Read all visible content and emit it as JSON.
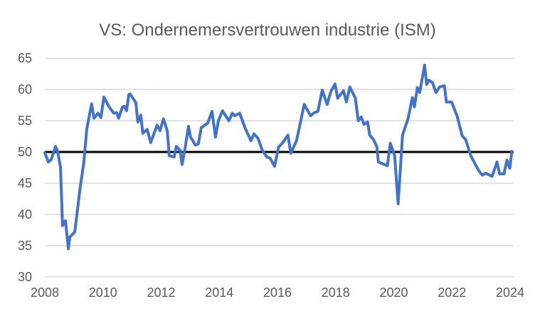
{
  "chart_data": {
    "type": "line",
    "title": "VS: Ondernemersvertrouwen industrie (ISM)",
    "xlabel": "",
    "ylabel": "",
    "xlim": [
      2008,
      2024
    ],
    "ylim": [
      30,
      65
    ],
    "x_ticks": [
      "2008",
      "2010",
      "2012",
      "2014",
      "2016",
      "2018",
      "2020",
      "2022",
      "2024"
    ],
    "y_ticks": [
      "30",
      "35",
      "40",
      "45",
      "50",
      "55",
      "60",
      "65"
    ],
    "grid": true,
    "legend": "none",
    "reference_line": {
      "y": 50,
      "color": "#000000"
    },
    "series": [
      {
        "name": "ISM",
        "color": "#4472c4",
        "points": [
          [
            2008.0,
            49.9
          ],
          [
            2008.12,
            48.4
          ],
          [
            2008.22,
            48.8
          ],
          [
            2008.37,
            50.9
          ],
          [
            2008.44,
            50.1
          ],
          [
            2008.54,
            47.5
          ],
          [
            2008.61,
            38.2
          ],
          [
            2008.71,
            39.0
          ],
          [
            2008.81,
            34.5
          ],
          [
            2008.86,
            36.4
          ],
          [
            2009.03,
            37.2
          ],
          [
            2009.22,
            44.5
          ],
          [
            2009.34,
            48.3
          ],
          [
            2009.44,
            53.6
          ],
          [
            2009.61,
            57.7
          ],
          [
            2009.69,
            55.4
          ],
          [
            2009.83,
            56.2
          ],
          [
            2009.93,
            55.5
          ],
          [
            2010.03,
            58.8
          ],
          [
            2010.2,
            57.3
          ],
          [
            2010.37,
            56.2
          ],
          [
            2010.47,
            56.3
          ],
          [
            2010.54,
            55.4
          ],
          [
            2010.67,
            57.2
          ],
          [
            2010.74,
            57.3
          ],
          [
            2010.81,
            56.6
          ],
          [
            2010.89,
            59.2
          ],
          [
            2010.93,
            59.3
          ],
          [
            2011.13,
            57.9
          ],
          [
            2011.2,
            54.8
          ],
          [
            2011.3,
            55.9
          ],
          [
            2011.37,
            53.0
          ],
          [
            2011.52,
            53.6
          ],
          [
            2011.64,
            51.5
          ],
          [
            2011.86,
            54.3
          ],
          [
            2011.96,
            53.4
          ],
          [
            2012.08,
            55.3
          ],
          [
            2012.21,
            53.4
          ],
          [
            2012.28,
            49.4
          ],
          [
            2012.45,
            49.2
          ],
          [
            2012.52,
            50.9
          ],
          [
            2012.65,
            50.3
          ],
          [
            2012.72,
            48.0
          ],
          [
            2012.82,
            50.5
          ],
          [
            2012.94,
            54.1
          ],
          [
            2013.01,
            52.4
          ],
          [
            2013.18,
            51.1
          ],
          [
            2013.28,
            51.3
          ],
          [
            2013.38,
            53.9
          ],
          [
            2013.6,
            54.6
          ],
          [
            2013.75,
            56.5
          ],
          [
            2013.87,
            52.4
          ],
          [
            2013.97,
            55.0
          ],
          [
            2014.11,
            56.6
          ],
          [
            2014.33,
            55.0
          ],
          [
            2014.45,
            56.2
          ],
          [
            2014.53,
            55.8
          ],
          [
            2014.7,
            56.2
          ],
          [
            2014.89,
            53.8
          ],
          [
            2015.09,
            51.8
          ],
          [
            2015.19,
            52.9
          ],
          [
            2015.33,
            52.2
          ],
          [
            2015.48,
            50.3
          ],
          [
            2015.63,
            49.2
          ],
          [
            2015.75,
            49.0
          ],
          [
            2015.9,
            47.7
          ],
          [
            2016.04,
            50.8
          ],
          [
            2016.17,
            51.4
          ],
          [
            2016.36,
            52.7
          ],
          [
            2016.46,
            49.8
          ],
          [
            2016.66,
            51.9
          ],
          [
            2016.92,
            57.6
          ],
          [
            2017.14,
            55.8
          ],
          [
            2017.27,
            56.3
          ],
          [
            2017.39,
            56.5
          ],
          [
            2017.54,
            59.9
          ],
          [
            2017.71,
            57.6
          ],
          [
            2017.83,
            59.6
          ],
          [
            2017.98,
            60.9
          ],
          [
            2018.07,
            58.6
          ],
          [
            2018.27,
            59.8
          ],
          [
            2018.37,
            58.0
          ],
          [
            2018.49,
            60.4
          ],
          [
            2018.68,
            58.6
          ],
          [
            2018.78,
            55.0
          ],
          [
            2018.88,
            55.6
          ],
          [
            2018.98,
            54.4
          ],
          [
            2019.1,
            54.8
          ],
          [
            2019.17,
            52.7
          ],
          [
            2019.3,
            52.0
          ],
          [
            2019.42,
            50.8
          ],
          [
            2019.47,
            48.4
          ],
          [
            2019.78,
            47.8
          ],
          [
            2019.88,
            51.4
          ],
          [
            2020.03,
            49.4
          ],
          [
            2020.15,
            41.7
          ],
          [
            2020.3,
            52.7
          ],
          [
            2020.49,
            55.3
          ],
          [
            2020.64,
            58.7
          ],
          [
            2020.71,
            57.2
          ],
          [
            2020.81,
            60.3
          ],
          [
            2020.89,
            59.5
          ],
          [
            2021.06,
            63.9
          ],
          [
            2021.13,
            60.8
          ],
          [
            2021.2,
            61.5
          ],
          [
            2021.33,
            61.1
          ],
          [
            2021.45,
            59.5
          ],
          [
            2021.57,
            60.4
          ],
          [
            2021.74,
            60.6
          ],
          [
            2021.81,
            58.0
          ],
          [
            2021.99,
            58.0
          ],
          [
            2022.18,
            55.7
          ],
          [
            2022.35,
            52.6
          ],
          [
            2022.47,
            52.0
          ],
          [
            2022.65,
            49.4
          ],
          [
            2022.91,
            47.1
          ],
          [
            2023.04,
            46.3
          ],
          [
            2023.16,
            46.6
          ],
          [
            2023.38,
            46.1
          ],
          [
            2023.55,
            48.4
          ],
          [
            2023.64,
            46.5
          ],
          [
            2023.79,
            46.5
          ],
          [
            2023.89,
            48.7
          ],
          [
            2023.99,
            47.4
          ],
          [
            2024.06,
            50.1
          ]
        ]
      }
    ]
  }
}
